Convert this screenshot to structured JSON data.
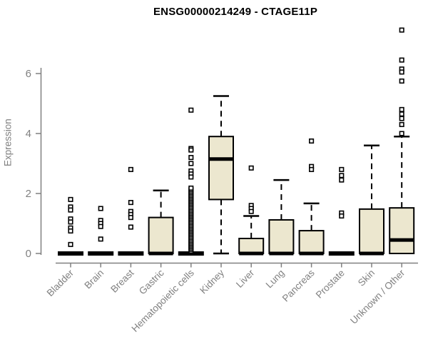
{
  "title": "ENSG00000214249 - CTAGE11P",
  "colors": {
    "box_fill": "#ece7cf",
    "box_stroke": "#000000",
    "median": "#000000",
    "whisker": "#000000",
    "outlier_fill": "#ffffff",
    "axis": "#808080",
    "tick_text": "#808080",
    "title_text": "#000000",
    "background": "#ffffff"
  },
  "chart_data": {
    "type": "boxplot",
    "title": "ENSG00000214249 - CTAGE11P",
    "xlabel": "",
    "ylabel": "Expression",
    "ylim": [
      0,
      7.6
    ],
    "yticks": [
      0,
      2,
      4,
      6
    ],
    "grid": false,
    "legend": "none",
    "categories": [
      "Bladder",
      "Brain",
      "Breast",
      "Gastric",
      "Hematopoietic cells",
      "Kidney",
      "Liver",
      "Lung",
      "Pancreas",
      "Prostate",
      "Skin",
      "Unknown / Other"
    ],
    "boxes": [
      {
        "label": "Bladder",
        "min": 0,
        "q1": 0,
        "median": 0,
        "q3": 0,
        "max": 0,
        "outliers": [
          1.8,
          1.55,
          1.45,
          1.15,
          1.05,
          0.85,
          0.75,
          0.3
        ]
      },
      {
        "label": "Brain",
        "min": 0,
        "q1": 0,
        "median": 0,
        "q3": 0,
        "max": 0,
        "outliers": [
          1.5,
          1.1,
          1.0,
          0.9,
          0.48
        ]
      },
      {
        "label": "Breast",
        "min": 0,
        "q1": 0,
        "median": 0,
        "q3": 0,
        "max": 0,
        "outliers": [
          2.8,
          1.7,
          1.4,
          1.3,
          1.2,
          0.88
        ]
      },
      {
        "label": "Gastric",
        "min": 0,
        "q1": 0,
        "median": 0,
        "q3": 1.2,
        "max": 2.1,
        "outliers": []
      },
      {
        "label": "Hematopoietic cells",
        "min": 0,
        "q1": 0,
        "median": 0,
        "q3": 0,
        "max": 0,
        "outliers": [
          4.78,
          3.5,
          3.45,
          3.2,
          3.0,
          2.75,
          2.65,
          2.55
        ],
        "outlier_band": {
          "from": 0.08,
          "to": 2.2,
          "step": 0.05
        }
      },
      {
        "label": "Kidney",
        "min": 0,
        "q1": 1.8,
        "median": 3.15,
        "q3": 3.9,
        "max": 5.25,
        "outliers": []
      },
      {
        "label": "Liver",
        "min": 0,
        "q1": 0,
        "median": 0,
        "q3": 0.5,
        "max": 1.25,
        "outliers": [
          2.85,
          1.6,
          1.5,
          1.4
        ]
      },
      {
        "label": "Lung",
        "min": 0,
        "q1": 0,
        "median": 0,
        "q3": 1.12,
        "max": 2.45,
        "outliers": []
      },
      {
        "label": "Pancreas",
        "min": 0,
        "q1": 0,
        "median": 0,
        "q3": 0.76,
        "max": 1.67,
        "outliers": [
          3.75,
          2.9,
          2.8
        ]
      },
      {
        "label": "Prostate",
        "min": 0,
        "q1": 0,
        "median": 0,
        "q3": 0,
        "max": 0,
        "outliers": [
          2.8,
          2.6,
          2.45,
          1.35,
          1.25
        ]
      },
      {
        "label": "Skin",
        "min": 0,
        "q1": 0,
        "median": 0,
        "q3": 1.48,
        "max": 3.6,
        "outliers": []
      },
      {
        "label": "Unknown / Other",
        "min": 0,
        "q1": 0,
        "median": 0.45,
        "q3": 1.52,
        "max": 3.9,
        "outliers": [
          7.45,
          6.45,
          6.15,
          6.05,
          5.75,
          4.8,
          4.65,
          4.5,
          4.3,
          4.0
        ]
      }
    ]
  }
}
